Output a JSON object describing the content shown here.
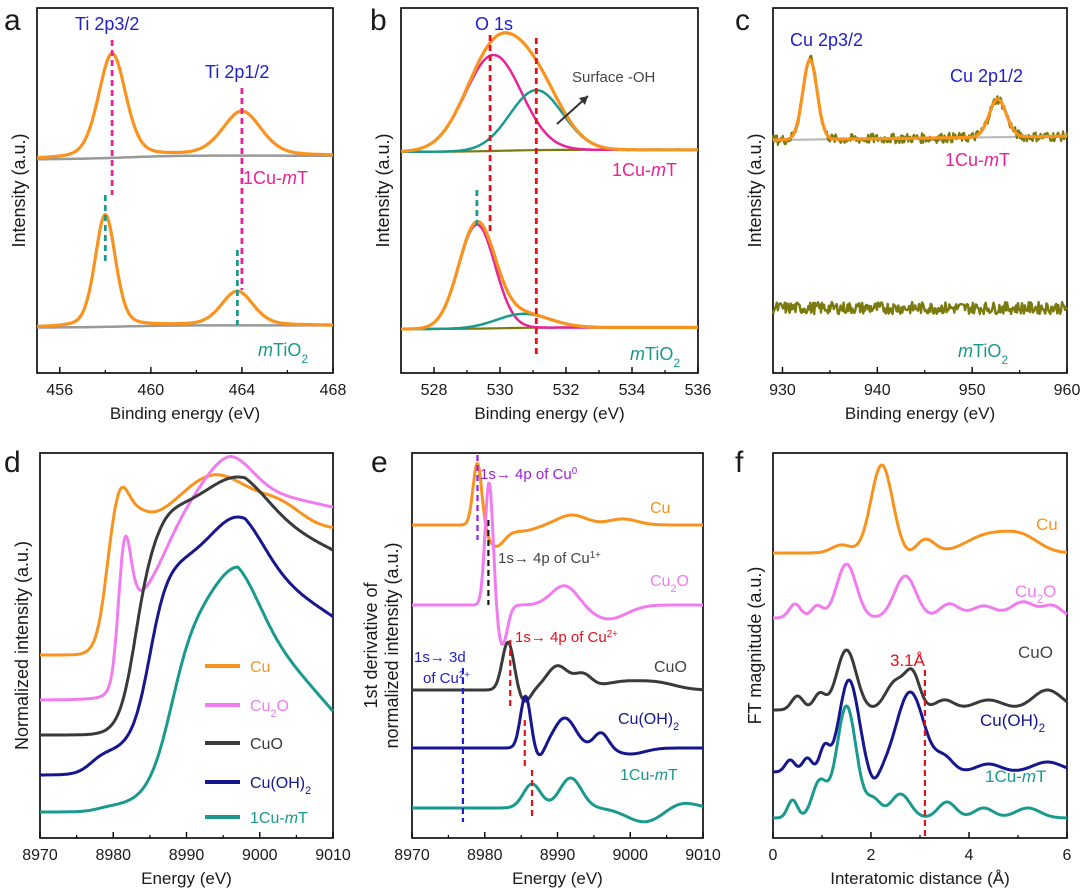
{
  "colors": {
    "orange": "#F7931E",
    "black": "#1a1a1a",
    "gray": "#999999",
    "lightgray": "#bbbbbb",
    "magenta": "#E8239A",
    "teal": "#1A9A8E",
    "olive": "#7A7A0F",
    "blue": "#1E1ECF",
    "red": "#E8101A",
    "pink": "#F07CF0",
    "darkgray": "#3a3a3a",
    "navy": "#16168F",
    "purple": "#9B1FE0"
  },
  "chart_data": [
    {
      "panel": "a",
      "type": "line",
      "title": "",
      "xlabel": "Binding energy (eV)",
      "ylabel": "Intensity (a.u.)",
      "xlim": [
        455,
        468
      ],
      "xticks": [
        456,
        460,
        464,
        468
      ],
      "peak_labels": [
        "Ti 2p3/2",
        "Ti 2p1/2"
      ],
      "sample_labels": [
        "1Cu-mT",
        "mTiO2"
      ],
      "series": [
        {
          "sample": "1Cu-mT",
          "peaks_eV": [
            458.3,
            464.0
          ],
          "peak_rel_heights": [
            1.0,
            0.42
          ]
        },
        {
          "sample": "mTiO2",
          "peaks_eV": [
            458.0,
            463.8
          ],
          "peak_rel_heights": [
            1.0,
            0.28
          ]
        }
      ],
      "reference_lines_eV": [
        458.3,
        464.0,
        458.0,
        463.8
      ]
    },
    {
      "panel": "b",
      "type": "line",
      "title": "",
      "xlabel": "Binding energy (eV)",
      "ylabel": "Intensity (a.u.)",
      "xlim": [
        527,
        536
      ],
      "xticks": [
        528,
        530,
        532,
        534,
        536
      ],
      "peak_labels": [
        "O 1s"
      ],
      "annotation": "Surface -OH",
      "sample_labels": [
        "1Cu-mT",
        "mTiO2"
      ],
      "series": [
        {
          "sample": "1Cu-mT",
          "components_eV": [
            529.8,
            531.1
          ]
        },
        {
          "sample": "mTiO2",
          "components_eV": [
            529.3,
            530.8
          ]
        }
      ],
      "reference_lines_eV": [
        529.7,
        531.1,
        529.3
      ]
    },
    {
      "panel": "c",
      "type": "line",
      "title": "",
      "xlabel": "Binding energy (eV)",
      "ylabel": "Intensity (a.u.)",
      "xlim": [
        929,
        960
      ],
      "xticks": [
        930,
        940,
        950,
        960
      ],
      "peak_labels": [
        "Cu 2p3/2",
        "Cu 2p1/2"
      ],
      "sample_labels": [
        "1Cu-mT",
        "mTiO2"
      ],
      "series": [
        {
          "sample": "1Cu-mT",
          "peaks_eV": [
            932.9,
            952.7
          ]
        },
        {
          "sample": "mTiO2",
          "peaks_eV": []
        }
      ]
    },
    {
      "panel": "d",
      "type": "line",
      "title": "",
      "xlabel": "Energy (eV)",
      "ylabel": "Normalized intensity (a.u.)",
      "xlim": [
        8970,
        9010
      ],
      "xticks": [
        8970,
        8980,
        8990,
        9000,
        9010
      ],
      "legend": [
        "Cu",
        "Cu2O",
        "CuO",
        "Cu(OH)2",
        "1Cu-mT"
      ],
      "series": [
        {
          "name": "Cu",
          "offset": 4,
          "edge_eV": 8979,
          "whiteline_eV": 8994
        },
        {
          "name": "Cu2O",
          "offset": 3,
          "edge_eV": 8981,
          "whiteline_eV": 8996
        },
        {
          "name": "CuO",
          "offset": 2,
          "edge_eV": 8984,
          "whiteline_eV": 8997
        },
        {
          "name": "Cu(OH)2",
          "offset": 1,
          "edge_eV": 8986,
          "whiteline_eV": 8998
        },
        {
          "name": "1Cu-mT",
          "offset": 0,
          "edge_eV": 8987,
          "whiteline_eV": 8998
        }
      ]
    },
    {
      "panel": "e",
      "type": "line",
      "title": "",
      "xlabel": "Energy (eV)",
      "ylabel": "1st derivative of normalized intensity (a.u.)",
      "xlim": [
        8970,
        9010
      ],
      "xticks": [
        8970,
        8980,
        8990,
        9000,
        9010
      ],
      "series_labels": [
        "Cu",
        "Cu2O",
        "CuO",
        "Cu(OH)2",
        "1Cu-mT"
      ],
      "annotations": [
        "1s→ 4p of Cu0",
        "1s→ 4p of Cu1+",
        "1s→ 3d of Cu2+",
        "1s→ 4p of Cu2+"
      ],
      "reference_lines_eV": [
        8979,
        8980.5,
        8977,
        8983.5,
        8985.5,
        8986.5
      ]
    },
    {
      "panel": "f",
      "type": "line",
      "title": "",
      "xlabel": "Interatomic distance (Å)",
      "ylabel": "FT magnitude (a.u.)",
      "xlim": [
        0,
        6
      ],
      "xticks": [
        0,
        2,
        4,
        6
      ],
      "series_labels": [
        "Cu",
        "Cu2O",
        "CuO",
        "Cu(OH)2",
        "1Cu-mT"
      ],
      "annotation": "3.1Å",
      "reference_line": 3.1,
      "series": [
        {
          "name": "Cu",
          "main_peak": 2.2
        },
        {
          "name": "Cu2O",
          "main_peak": 1.5
        },
        {
          "name": "CuO",
          "main_peak": 1.5
        },
        {
          "name": "Cu(OH)2",
          "main_peak": 1.55
        },
        {
          "name": "1Cu-mT",
          "main_peak": 1.5
        }
      ]
    }
  ],
  "panel_letters": [
    "a",
    "b",
    "c",
    "d",
    "e",
    "f"
  ],
  "text": {
    "a_xlabel": "Binding energy (eV)",
    "a_ylabel": "Intensity (a.u.)",
    "a_peak1": "Ti 2p3/2",
    "a_peak2": "Ti 2p1/2",
    "b_xlabel": "Binding energy (eV)",
    "b_ylabel": "Intensity (a.u.)",
    "b_peak": "O 1s",
    "b_oh": "Surface -OH",
    "c_xlabel": "Binding energy (eV)",
    "c_ylabel": "Intensity (a.u.)",
    "c_peak1": "Cu 2p3/2",
    "c_peak2": "Cu 2p1/2",
    "d_xlabel": "Energy (eV)",
    "d_ylabel": "Normalized intensity (a.u.)",
    "e_xlabel": "Energy (eV)",
    "e_ylabel1": "1st derivative of",
    "e_ylabel2": "normalized intensity (a.u.)",
    "f_xlabel": "Interatomic distance (Å)",
    "f_ylabel": "FT magnitude (a.u.)",
    "cu": "Cu",
    "cuo": "CuO",
    "mt_pre": "1Cu-",
    "mt_mid": "m",
    "mt_post": "T",
    "cu2o_base": "Cu",
    "cu2o_sub": "2",
    "cu2o_tail": "O",
    "cuoh_base": "Cu(OH)",
    "cuoh_sub": "2",
    "tio2_m": "m",
    "tio2_base": "TiO",
    "tio2_sub": "2",
    "e_ann1a": "1s→ 4p of Cu",
    "e_ann1s": "0",
    "e_ann2a": "1s→ 4p of Cu",
    "e_ann2s": "1+",
    "e_ann3a": "1s→ 3d",
    "e_ann3b": "of Cu",
    "e_ann3s": "2+",
    "e_ann4a": "1s→ 4p of Cu",
    "e_ann4s": "2+",
    "f_ann": "3.1Å"
  }
}
